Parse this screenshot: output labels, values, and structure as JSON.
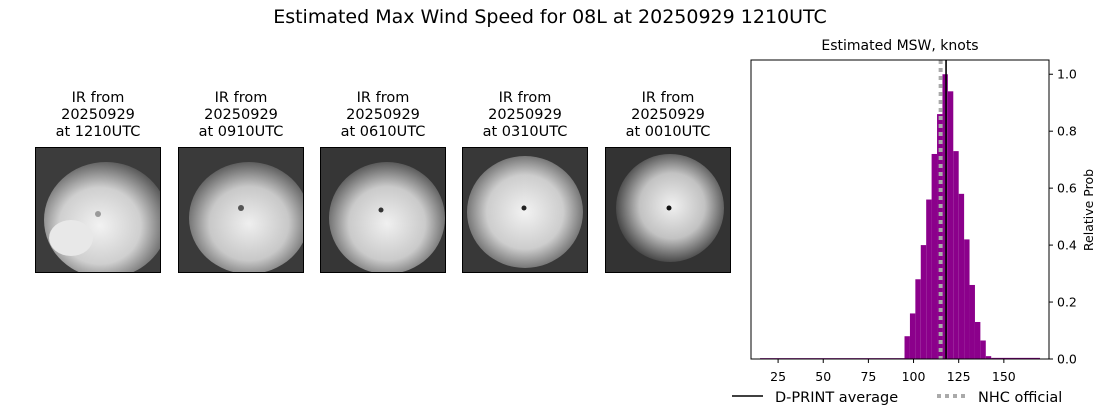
{
  "figure": {
    "title": "Estimated Max Wind Speed for 08L at 20250929 1210UTC"
  },
  "ir_panels": [
    {
      "label": "IR from\n20250929\nat 1210UTC"
    },
    {
      "label": "IR from\n20250929\nat 0910UTC"
    },
    {
      "label": "IR from\n20250929\nat 0610UTC"
    },
    {
      "label": "IR from\n20250929\nat 0310UTC"
    },
    {
      "label": "IR from\n20250929\nat 0010UTC"
    }
  ],
  "chart_data": {
    "type": "bar",
    "title": "Estimated MSW, knots",
    "xlabel": "",
    "ylabel": "Relative Prob",
    "xlim": [
      10,
      175
    ],
    "ylim": [
      0,
      1.05
    ],
    "xticks": [
      25,
      50,
      75,
      100,
      125,
      150
    ],
    "yticks": [
      0.0,
      0.2,
      0.4,
      0.6,
      0.8,
      1.0
    ],
    "bar_color": "#8b008b",
    "bins": [
      {
        "x0": 15,
        "x1": 95,
        "value": 0.003
      },
      {
        "x0": 95,
        "x1": 98,
        "value": 0.08
      },
      {
        "x0": 98,
        "x1": 101,
        "value": 0.16
      },
      {
        "x0": 101,
        "x1": 104,
        "value": 0.28
      },
      {
        "x0": 104,
        "x1": 107,
        "value": 0.4
      },
      {
        "x0": 107,
        "x1": 110,
        "value": 0.56
      },
      {
        "x0": 110,
        "x1": 113,
        "value": 0.72
      },
      {
        "x0": 113,
        "x1": 116,
        "value": 0.86
      },
      {
        "x0": 116,
        "x1": 119,
        "value": 1.0
      },
      {
        "x0": 119,
        "x1": 122,
        "value": 0.94
      },
      {
        "x0": 122,
        "x1": 125,
        "value": 0.73
      },
      {
        "x0": 125,
        "x1": 128,
        "value": 0.58
      },
      {
        "x0": 128,
        "x1": 131,
        "value": 0.42
      },
      {
        "x0": 131,
        "x1": 134,
        "value": 0.26
      },
      {
        "x0": 134,
        "x1": 137,
        "value": 0.13
      },
      {
        "x0": 137,
        "x1": 140,
        "value": 0.065
      },
      {
        "x0": 140,
        "x1": 143,
        "value": 0.01
      },
      {
        "x0": 143,
        "x1": 170,
        "value": 0.004
      }
    ],
    "dprint_average": 118,
    "nhc_official": 115,
    "legend": {
      "placement": "bottom",
      "entries": [
        {
          "label": "D-PRINT average",
          "color": "#000000",
          "style": "solid"
        },
        {
          "label": "NHC official",
          "color": "#aaaaaa",
          "style": "dotted"
        }
      ]
    }
  }
}
